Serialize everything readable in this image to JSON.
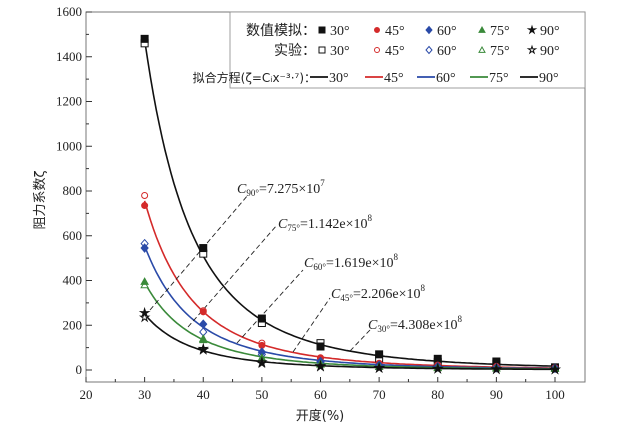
{
  "chart_data": {
    "type": "scatter",
    "xlabel": "开度(%)",
    "ylabel": "阻力系数ζ",
    "xlim": [
      20,
      105
    ],
    "ylim": [
      -50,
      1600
    ],
    "xticks": [
      20,
      30,
      40,
      50,
      60,
      70,
      80,
      90,
      100
    ],
    "yticks": [
      0,
      200,
      400,
      600,
      800,
      1000,
      1200,
      1400,
      1600
    ],
    "grid": false,
    "legend_placement": "top-right",
    "legend": {
      "sim_label": "数值模拟：",
      "exp_label": "实验：",
      "fit_label": "拟合方程(ζ=Cᵢx⁻³·⁷)：",
      "fit_label_parts": {
        "prefix": "拟合方程(",
        "zeta": "ζ",
        "eq": "=",
        "C": "C",
        "sub": "i",
        "x": "x",
        "exp": "-3.7",
        "suffix": ")："
      },
      "entries": [
        "30°",
        "45°",
        "60°",
        "75°",
        "90°"
      ]
    },
    "colors": {
      "30°": "#111111",
      "45°": "#d42a2a",
      "60°": "#2a4aa8",
      "75°": "#3a8a3a",
      "90°": "#111111"
    },
    "markers": {
      "30°": "square",
      "45°": "circle",
      "60°": "diamond",
      "75°": "triangle",
      "90°": "star"
    },
    "x": [
      30,
      40,
      50,
      60,
      70,
      80,
      90,
      100
    ],
    "series": [
      {
        "name": "30°",
        "simulation": [
          1480,
          545,
          230,
          105,
          70,
          50,
          38,
          12
        ],
        "experiment": [
          1460,
          520,
          210,
          120,
          52,
          35,
          28,
          10
        ],
        "fit_C": 430800000.0
      },
      {
        "name": "45°",
        "simulation": [
          735,
          260,
          110,
          52,
          28,
          20,
          15,
          10
        ],
        "experiment": [
          780,
          265,
          120,
          55,
          30,
          22,
          16,
          10
        ]
      },
      {
        "name": "60°",
        "simulation": [
          545,
          205,
          80,
          38,
          22,
          15,
          10,
          8
        ],
        "experiment": [
          565,
          170,
          70,
          35,
          20,
          14,
          10,
          8
        ]
      },
      {
        "name": "75°",
        "simulation": [
          395,
          135,
          50,
          25,
          15,
          10,
          8,
          6
        ],
        "experiment": [
          380,
          140,
          55,
          28,
          16,
          11,
          8,
          6
        ]
      },
      {
        "name": "90°",
        "simulation": [
          255,
          90,
          30,
          15,
          8,
          5,
          3,
          2
        ],
        "experiment": [
          235,
          95,
          35,
          18,
          10,
          6,
          4,
          2
        ]
      }
    ],
    "fit_exponent": -3.7,
    "fit_C": {
      "30°": 430800000.0,
      "45°": 220600000.0,
      "60°": 161900000.0,
      "75°": 114200000.0,
      "90°": 72750000.0
    },
    "annotations": [
      {
        "sub": "90°",
        "text": "=7.275×10",
        "sup": "7"
      },
      {
        "sub": "75°",
        "text": "=1.142e×10",
        "sup": "8"
      },
      {
        "sub": "60°",
        "text": "=1.619e×10",
        "sup": "8"
      },
      {
        "sub": "45°",
        "text": "=2.206e×10",
        "sup": "8"
      },
      {
        "sub": "30°",
        "text": "=4.308e×10",
        "sup": "8"
      }
    ]
  }
}
